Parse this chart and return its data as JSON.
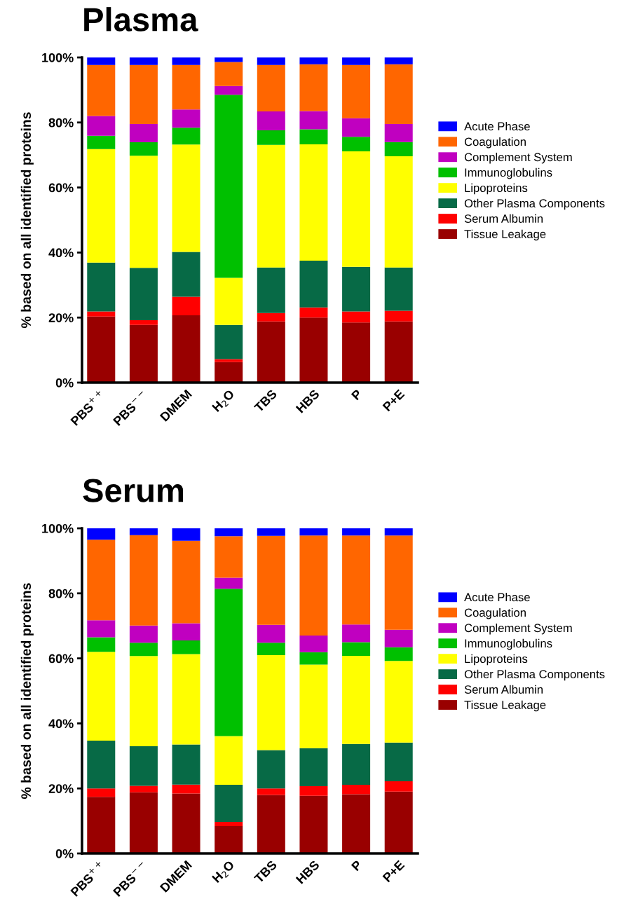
{
  "chart_data": [
    {
      "type": "bar",
      "title": "Plasma",
      "ylabel": "% based on all identified proteins",
      "stacked": true,
      "legend": "right",
      "grid": false,
      "categories": [
        "PBS$^{++}$",
        "PBS$^{−−}$",
        "DMEM",
        "H$_{2}$O",
        "TBS",
        "HBS",
        "P",
        "P+E"
      ],
      "ylim": [
        0,
        100
      ],
      "yticks": [
        {
          "value": 0,
          "label": "0%"
        },
        {
          "value": 20,
          "label": "20%"
        },
        {
          "value": 40,
          "label": "40%"
        },
        {
          "value": 60,
          "label": "60%"
        },
        {
          "value": 80,
          "label": "80%"
        },
        {
          "value": 100,
          "label": "100%"
        }
      ],
      "series": [
        {
          "name": "Tissue Leakage",
          "color": "#990000",
          "values": [
            20.3,
            17.7,
            20.7,
            6.3,
            18.8,
            20.0,
            18.5,
            18.8
          ]
        },
        {
          "name": "Serum Albumin",
          "color": "#ff0000",
          "values": [
            1.6,
            1.5,
            5.7,
            0.9,
            2.6,
            3.1,
            3.4,
            3.3
          ]
        },
        {
          "name": "Other Plasma Components",
          "color": "#076a46",
          "values": [
            15.0,
            16.1,
            13.8,
            10.5,
            14.0,
            14.4,
            13.7,
            13.3
          ]
        },
        {
          "name": "Lipoproteins",
          "color": "#ffff00",
          "values": [
            34.9,
            34.5,
            33.0,
            14.5,
            37.7,
            35.8,
            35.5,
            34.2
          ]
        },
        {
          "name": "Immunoglobulins",
          "color": "#00c000",
          "values": [
            4.1,
            4.1,
            5.2,
            56.3,
            4.5,
            4.6,
            4.5,
            4.4
          ]
        },
        {
          "name": "Complement System",
          "color": "#c000c0",
          "values": [
            6.1,
            5.6,
            5.6,
            2.7,
            5.8,
            5.6,
            5.7,
            5.5
          ]
        },
        {
          "name": "Coagulation",
          "color": "#ff6600",
          "values": [
            15.7,
            18.2,
            13.7,
            7.4,
            14.3,
            14.4,
            16.4,
            18.4
          ]
        },
        {
          "name": "Acute Phase",
          "color": "#0000ff",
          "values": [
            2.3,
            2.3,
            2.3,
            1.4,
            2.3,
            2.1,
            2.3,
            2.1
          ]
        }
      ]
    },
    {
      "type": "bar",
      "title": "Serum",
      "ylabel": "% based on all identified proteins",
      "stacked": true,
      "legend": "right",
      "grid": false,
      "categories": [
        "PBS$^{++}$",
        "PBS$^{−−}$",
        "DMEM",
        "H$_{2}$O",
        "TBS",
        "HBS",
        "P",
        "P+E"
      ],
      "ylim": [
        0,
        100
      ],
      "yticks": [
        {
          "value": 0,
          "label": "0%"
        },
        {
          "value": 20,
          "label": "20%"
        },
        {
          "value": 40,
          "label": "40%"
        },
        {
          "value": 60,
          "label": "60%"
        },
        {
          "value": 80,
          "label": "80%"
        },
        {
          "value": 100,
          "label": "100%"
        }
      ],
      "series": [
        {
          "name": "Tissue Leakage",
          "color": "#990000",
          "values": [
            17.4,
            18.8,
            18.4,
            8.4,
            18.0,
            17.7,
            18.2,
            19.0
          ]
        },
        {
          "name": "Serum Albumin",
          "color": "#ff0000",
          "values": [
            2.6,
            2.0,
            2.8,
            1.3,
            2.0,
            3.0,
            2.9,
            3.2
          ]
        },
        {
          "name": "Other Plasma Components",
          "color": "#076a46",
          "values": [
            14.7,
            12.2,
            12.3,
            11.4,
            11.8,
            11.7,
            12.6,
            11.9
          ]
        },
        {
          "name": "Lipoproteins",
          "color": "#ffff00",
          "values": [
            27.3,
            27.7,
            27.8,
            15.0,
            29.2,
            25.7,
            27.1,
            25.1
          ]
        },
        {
          "name": "Immunoglobulins",
          "color": "#00c000",
          "values": [
            4.5,
            4.1,
            4.2,
            45.3,
            3.8,
            3.8,
            4.2,
            4.2
          ]
        },
        {
          "name": "Complement System",
          "color": "#c000c0",
          "values": [
            5.2,
            5.3,
            5.3,
            3.4,
            5.5,
            5.1,
            5.4,
            5.4
          ]
        },
        {
          "name": "Coagulation",
          "color": "#ff6600",
          "values": [
            24.8,
            27.8,
            25.4,
            12.8,
            27.4,
            30.8,
            27.4,
            29.0
          ]
        },
        {
          "name": "Acute Phase",
          "color": "#0000ff",
          "values": [
            3.5,
            2.1,
            3.8,
            2.4,
            2.3,
            2.2,
            2.2,
            2.2
          ]
        }
      ]
    }
  ]
}
